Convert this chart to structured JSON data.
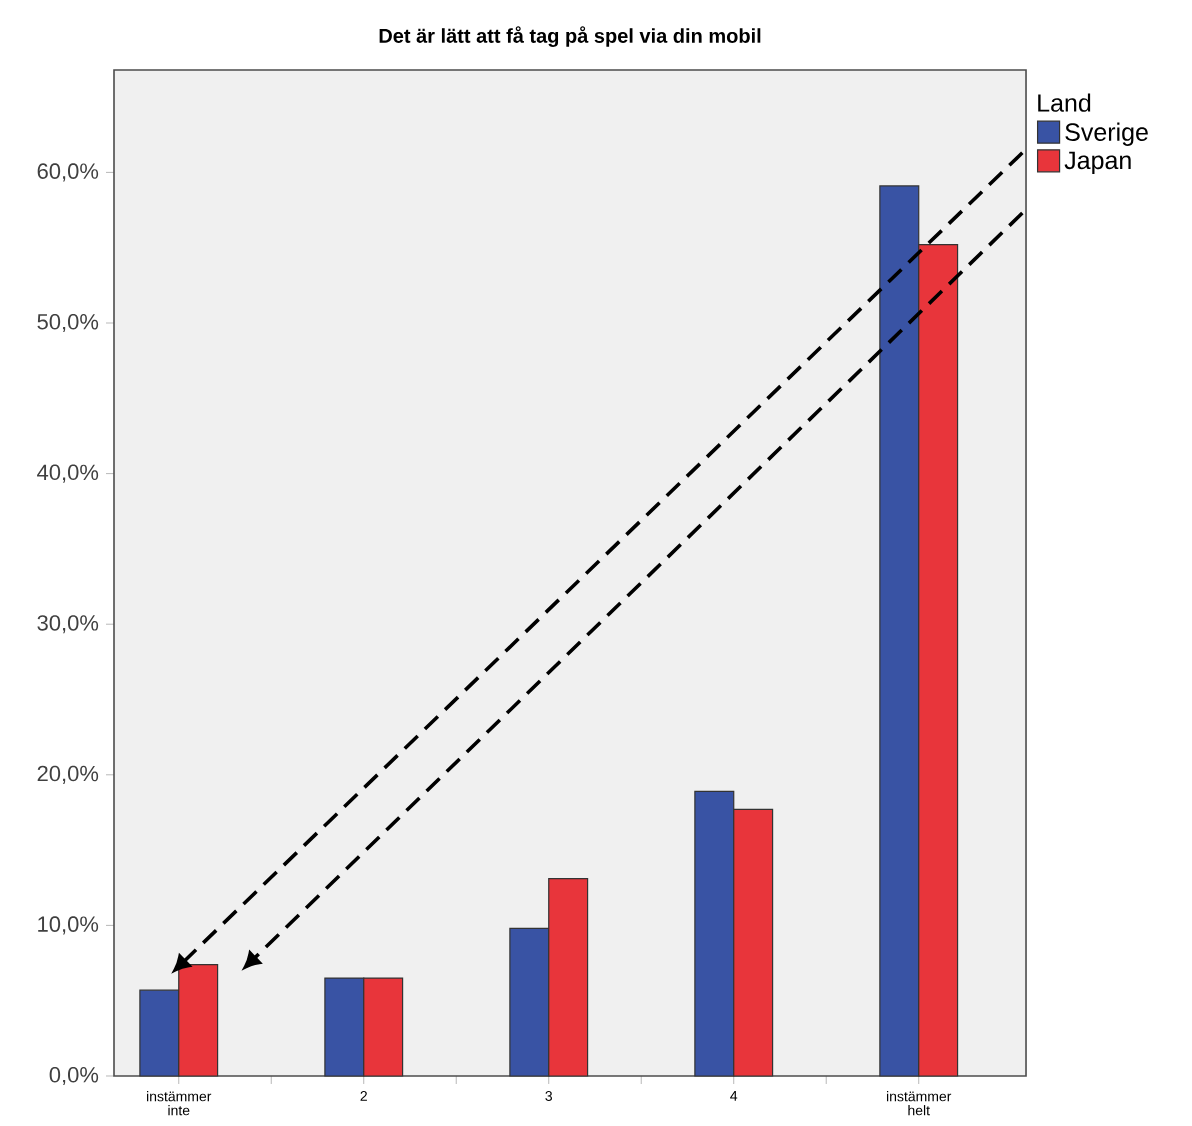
{
  "chart_data": {
    "type": "bar",
    "title": "Det är lätt att få tag på spel via din mobil",
    "categories": [
      "instämmer inte",
      "2",
      "3",
      "4",
      "instämmer helt"
    ],
    "series": [
      {
        "name": "Sverige",
        "color": "#3953a4",
        "values": [
          5.7,
          6.5,
          9.8,
          18.9,
          59.1
        ]
      },
      {
        "name": "Japan",
        "color": "#e8353b",
        "values": [
          7.4,
          6.5,
          13.1,
          17.7,
          55.2
        ]
      }
    ],
    "legend_title": "Land",
    "legend": "right",
    "ylim": [
      0,
      66.8
    ],
    "yticks": [
      {
        "value": 0,
        "label": "0,0%"
      },
      {
        "value": 10,
        "label": "10,0%"
      },
      {
        "value": 20,
        "label": "20,0%"
      },
      {
        "value": 30,
        "label": "30,0%"
      },
      {
        "value": 40,
        "label": "40,0%"
      },
      {
        "value": 50,
        "label": "50,0%"
      },
      {
        "value": 60,
        "label": "60,0%"
      }
    ]
  }
}
